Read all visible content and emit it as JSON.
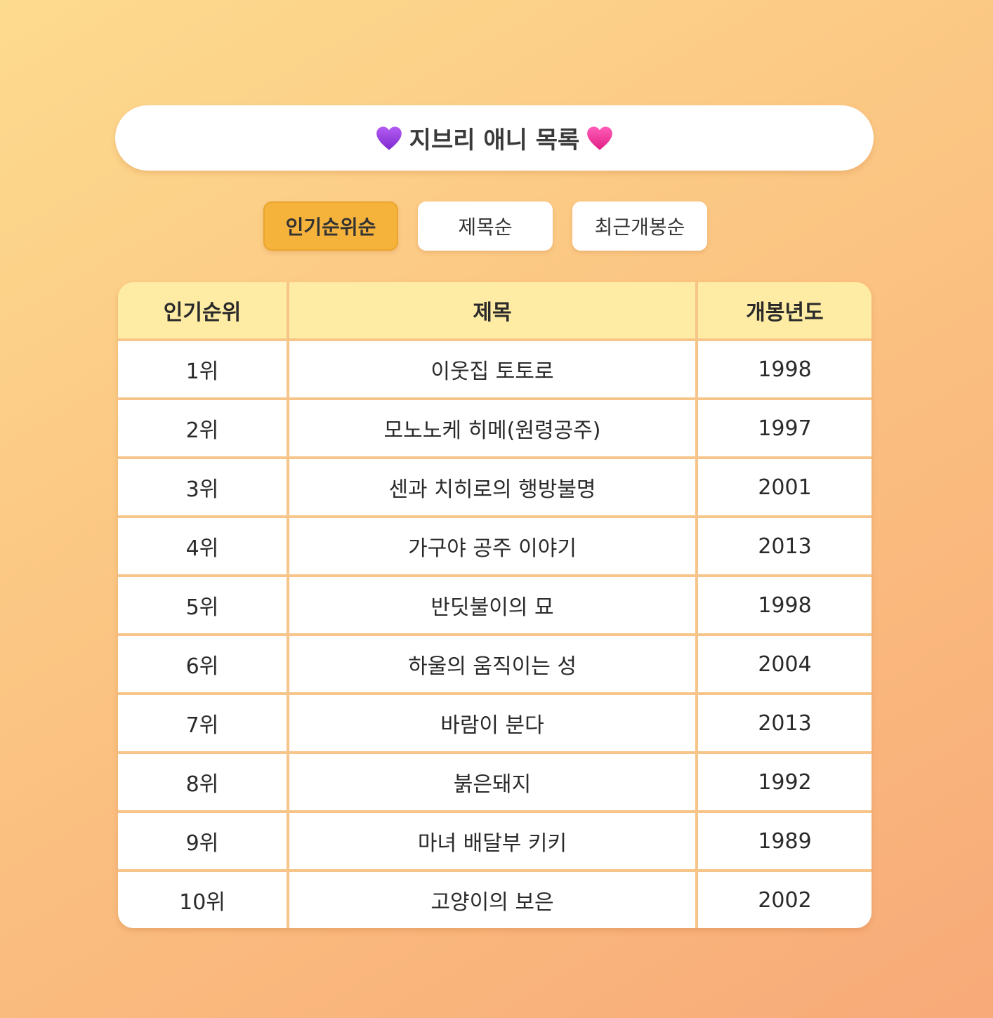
{
  "header": {
    "title": "지브리 애니 목록",
    "left_icon": "purple-heart-icon",
    "right_icon": "pink-heart-icon"
  },
  "sort_tabs": [
    {
      "label": "인기순위순",
      "active": true
    },
    {
      "label": "제목순",
      "active": false
    },
    {
      "label": "최근개봉순",
      "active": false
    }
  ],
  "table": {
    "columns": [
      "인기순위",
      "제목",
      "개봉년도"
    ],
    "rows": [
      {
        "rank": "1위",
        "title": "이웃집 토토로",
        "year": "1998"
      },
      {
        "rank": "2위",
        "title": "모노노케 히메(원령공주)",
        "year": "1997"
      },
      {
        "rank": "3위",
        "title": "센과 치히로의 행방불명",
        "year": "2001"
      },
      {
        "rank": "4위",
        "title": "가구야 공주 이야기",
        "year": "2013"
      },
      {
        "rank": "5위",
        "title": "반딧불이의 묘",
        "year": "1998"
      },
      {
        "rank": "6위",
        "title": "하울의 움직이는 성",
        "year": "2004"
      },
      {
        "rank": "7위",
        "title": "바람이 분다",
        "year": "2013"
      },
      {
        "rank": "8위",
        "title": "붉은돼지",
        "year": "1992"
      },
      {
        "rank": "9위",
        "title": "마녀 배달부 키키",
        "year": "1989"
      },
      {
        "rank": "10위",
        "title": "고양이의 보은",
        "year": "2002"
      }
    ]
  },
  "colors": {
    "active_tab": "#f5b33c",
    "header_row": "#ffeca4",
    "grid_line": "#f7c58a",
    "purple_heart": "#9b3fe0",
    "pink_heart": "#f0349a"
  }
}
